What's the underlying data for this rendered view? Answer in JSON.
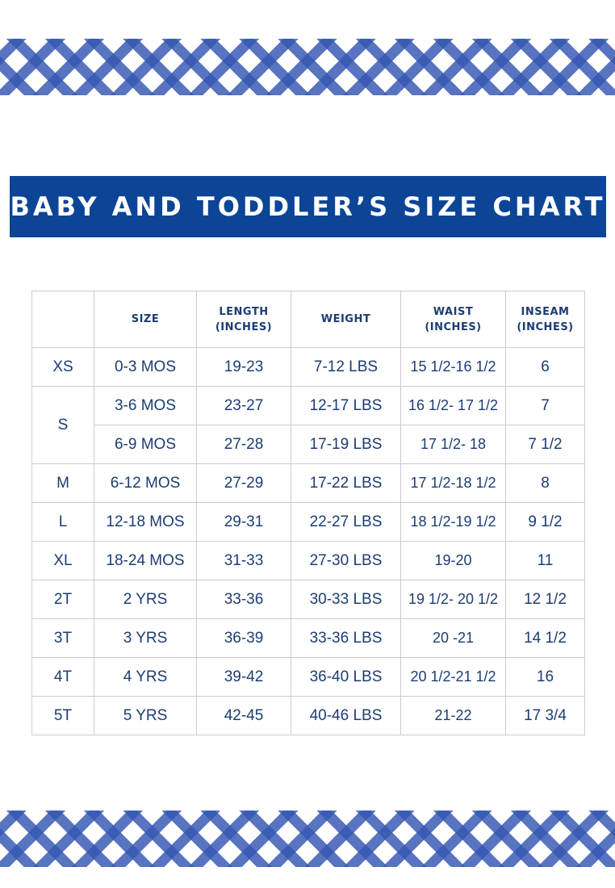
{
  "title": "BABY AND TODDLER’S SIZE CHART",
  "headers": [
    {
      "line1": "",
      "line2": ""
    },
    {
      "line1": "SIZE",
      "line2": ""
    },
    {
      "line1": "LENGTH",
      "line2": "(INCHES)"
    },
    {
      "line1": "WEIGHT",
      "line2": ""
    },
    {
      "line1": "WAIST",
      "line2": "(INCHES)"
    },
    {
      "line1": "INSEAM",
      "line2": "(INCHES)"
    }
  ],
  "rows": [
    {
      "label": "XS",
      "size": "0-3 MOS",
      "length": "19-23",
      "weight": "7-12 LBS",
      "waist": "15 1/2-16 1/2",
      "inseam": "6"
    },
    {
      "label": "S",
      "size": "3-6 MOS",
      "length": "23-27",
      "weight": "12-17 LBS",
      "waist": "16 1/2- 17 1/2",
      "inseam": "7"
    },
    {
      "label": "",
      "size": "6-9 MOS",
      "length": "27-28",
      "weight": "17-19 LBS",
      "waist": "17 1/2- 18",
      "inseam": "7 1/2"
    },
    {
      "label": "M",
      "size": "6-12 MOS",
      "length": "27-29",
      "weight": "17-22 LBS",
      "waist": "17 1/2-18 1/2",
      "inseam": "8"
    },
    {
      "label": "L",
      "size": "12-18 MOS",
      "length": "29-31",
      "weight": "22-27 LBS",
      "waist": "18 1/2-19 1/2",
      "inseam": "9 1/2"
    },
    {
      "label": "XL",
      "size": "18-24 MOS",
      "length": "31-33",
      "weight": "27-30 LBS",
      "waist": "19-20",
      "inseam": "11"
    },
    {
      "label": "2T",
      "size": "2 YRS",
      "length": "33-36",
      "weight": "30-33 LBS",
      "waist": "19 1/2- 20 1/2",
      "inseam": "12 1/2"
    },
    {
      "label": "3T",
      "size": "3 YRS",
      "length": "36-39",
      "weight": "33-36 LBS",
      "waist": "20 -21",
      "inseam": "14 1/2"
    },
    {
      "label": "4T",
      "size": "4 YRS",
      "length": "39-42",
      "weight": "36-40 LBS",
      "waist": "20 1/2-21 1/2",
      "inseam": "16"
    },
    {
      "label": "5T",
      "size": "5 YRS",
      "length": "42-45",
      "weight": "40-46 LBS",
      "waist": "21-22",
      "inseam": "17 3/4"
    }
  ]
}
